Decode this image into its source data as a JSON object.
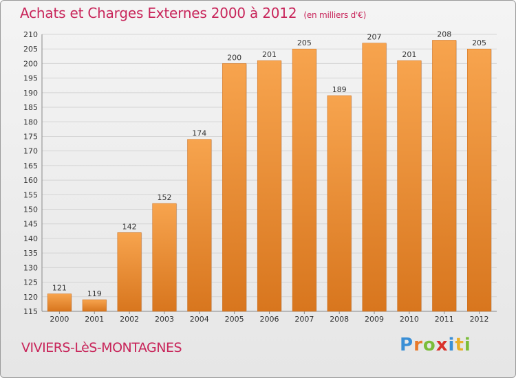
{
  "header": {
    "title": "Achats et Charges Externes 2000 à 2012",
    "unit": "(en milliers d'€)"
  },
  "footer": {
    "commune": "VIVIERS-LèS-MONTAGNES",
    "logo": "Proxiti",
    "logo_letters": [
      "P",
      "r",
      "o",
      "x",
      "i",
      "t",
      "i"
    ],
    "logo_colors": [
      "#3a8fd6",
      "#e8792a",
      "#7bbd3a",
      "#d9322b",
      "#3a8fd6",
      "#e8b02a",
      "#7bbd3a"
    ]
  },
  "colors": {
    "title": "#c8255a",
    "bar_top": "#f7a44e",
    "bar_bottom": "#d8761e",
    "grid": "#d4d4d4"
  },
  "chart_data": {
    "type": "bar",
    "title": "Achats et Charges Externes 2000 à 2012",
    "subtitle": "(en milliers d'€)",
    "categories": [
      "2000",
      "2001",
      "2002",
      "2003",
      "2004",
      "2005",
      "2006",
      "2007",
      "2008",
      "2009",
      "2010",
      "2011",
      "2012"
    ],
    "values": [
      121,
      119,
      142,
      152,
      174,
      200,
      201,
      205,
      189,
      207,
      201,
      208,
      205
    ],
    "ylim": [
      115,
      210
    ],
    "yticks": [
      115,
      120,
      125,
      130,
      135,
      140,
      145,
      150,
      155,
      160,
      165,
      170,
      175,
      180,
      185,
      190,
      195,
      200,
      205,
      210
    ],
    "grid": true,
    "data_labels": true
  }
}
